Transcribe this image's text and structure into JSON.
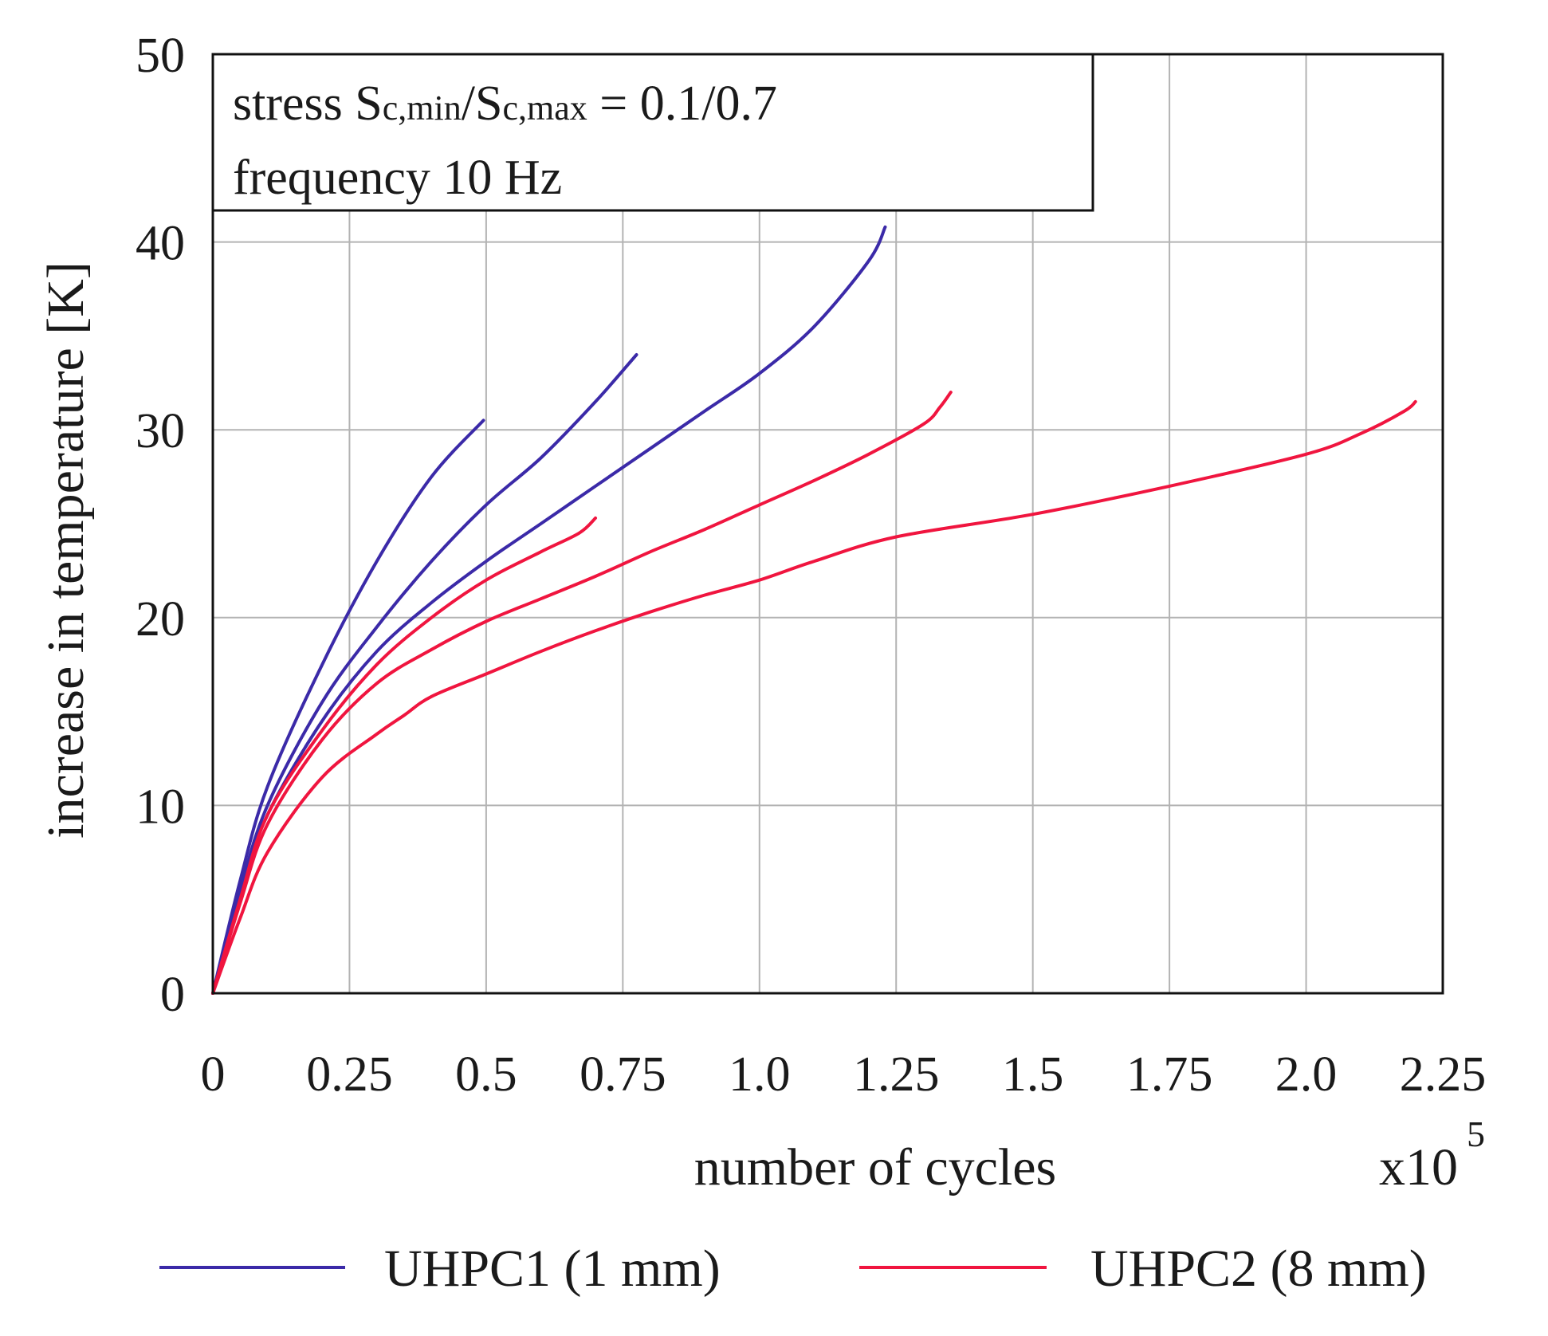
{
  "chart_data": {
    "type": "line",
    "title": "",
    "xlabel": "number of cycles",
    "ylabel": "increase in temperature [K]",
    "x_multiplier": {
      "base": "x10",
      "exponent": "5"
    },
    "xlim": [
      0,
      2.25
    ],
    "ylim": [
      0,
      50
    ],
    "xticks": [
      0,
      0.25,
      0.5,
      0.75,
      1.0,
      1.25,
      1.5,
      1.75,
      2.0,
      2.25
    ],
    "xtick_labels": [
      "0",
      "0.25",
      "0.5",
      "0.75",
      "1.0",
      "1.25",
      "1.5",
      "1.75",
      "2.0",
      "2.25"
    ],
    "yticks": [
      0,
      10,
      20,
      30,
      40,
      50
    ],
    "ytick_labels": [
      "0",
      "10",
      "20",
      "30",
      "40",
      "50"
    ],
    "grid": true,
    "legend_position": "bottom",
    "legend": [
      {
        "label": "UHPC1 (1 mm)",
        "color": "#3b2aa8"
      },
      {
        "label": "UHPC2 (8 mm)",
        "color": "#f0153f"
      }
    ],
    "annotation": {
      "line1": {
        "prefix": "stress S",
        "sub1": "c,min",
        "mid": "/S",
        "sub2": "c,max",
        "suffix": " = 0.1/0.7"
      },
      "line2": "frequency 10 Hz"
    },
    "series": [
      {
        "name": "UHPC1 (1 mm)",
        "color": "#3b2aa8",
        "points": [
          [
            0,
            0
          ],
          [
            0.05,
            6
          ],
          [
            0.1,
            11
          ],
          [
            0.2,
            17.5
          ],
          [
            0.3,
            23
          ],
          [
            0.4,
            27.5
          ],
          [
            0.495,
            30.5
          ]
        ]
      },
      {
        "name": "UHPC1 (1 mm)",
        "color": "#3b2aa8",
        "points": [
          [
            0,
            0
          ],
          [
            0.05,
            5.5
          ],
          [
            0.1,
            10
          ],
          [
            0.2,
            15.5
          ],
          [
            0.3,
            19.5
          ],
          [
            0.4,
            23
          ],
          [
            0.5,
            26
          ],
          [
            0.6,
            28.5
          ],
          [
            0.7,
            31.5
          ],
          [
            0.775,
            34
          ]
        ]
      },
      {
        "name": "UHPC1 (1 mm)",
        "color": "#3b2aa8",
        "points": [
          [
            0,
            0
          ],
          [
            0.05,
            5.5
          ],
          [
            0.1,
            9.5
          ],
          [
            0.2,
            14.5
          ],
          [
            0.3,
            18.2
          ],
          [
            0.4,
            20.8
          ],
          [
            0.5,
            23
          ],
          [
            0.6,
            25
          ],
          [
            0.7,
            27
          ],
          [
            0.8,
            29
          ],
          [
            0.9,
            31
          ],
          [
            1.0,
            33
          ],
          [
            1.1,
            35.5
          ],
          [
            1.2,
            39
          ],
          [
            1.23,
            40.8
          ]
        ]
      },
      {
        "name": "UHPC2 (8 mm)",
        "color": "#f0153f",
        "points": [
          [
            0,
            0
          ],
          [
            0.05,
            5
          ],
          [
            0.1,
            9.5
          ],
          [
            0.2,
            14
          ],
          [
            0.3,
            17.5
          ],
          [
            0.4,
            20
          ],
          [
            0.5,
            22
          ],
          [
            0.6,
            23.5
          ],
          [
            0.67,
            24.5
          ],
          [
            0.7,
            25.3
          ]
        ]
      },
      {
        "name": "UHPC2 (8 mm)",
        "color": "#f0153f",
        "points": [
          [
            0,
            0
          ],
          [
            0.05,
            4.8
          ],
          [
            0.1,
            9
          ],
          [
            0.2,
            13.5
          ],
          [
            0.3,
            16.5
          ],
          [
            0.4,
            18.3
          ],
          [
            0.5,
            19.8
          ],
          [
            0.6,
            21
          ],
          [
            0.7,
            22.2
          ],
          [
            0.8,
            23.5
          ],
          [
            0.9,
            24.7
          ],
          [
            1.0,
            26
          ],
          [
            1.1,
            27.3
          ],
          [
            1.2,
            28.7
          ],
          [
            1.3,
            30.3
          ],
          [
            1.33,
            31.2
          ],
          [
            1.35,
            32
          ]
        ]
      },
      {
        "name": "UHPC2 (8 mm)",
        "color": "#f0153f",
        "points": [
          [
            0,
            0
          ],
          [
            0.05,
            4
          ],
          [
            0.1,
            7.5
          ],
          [
            0.2,
            11.5
          ],
          [
            0.3,
            13.8
          ],
          [
            0.35,
            14.8
          ],
          [
            0.4,
            15.8
          ],
          [
            0.5,
            17
          ],
          [
            0.6,
            18.2
          ],
          [
            0.7,
            19.3
          ],
          [
            0.8,
            20.3
          ],
          [
            0.9,
            21.2
          ],
          [
            1.0,
            22
          ],
          [
            1.1,
            23
          ],
          [
            1.25,
            24.3
          ],
          [
            1.5,
            25.5
          ],
          [
            1.75,
            27
          ],
          [
            2.0,
            28.7
          ],
          [
            2.1,
            29.8
          ],
          [
            2.18,
            31
          ],
          [
            2.2,
            31.5
          ]
        ]
      }
    ]
  }
}
